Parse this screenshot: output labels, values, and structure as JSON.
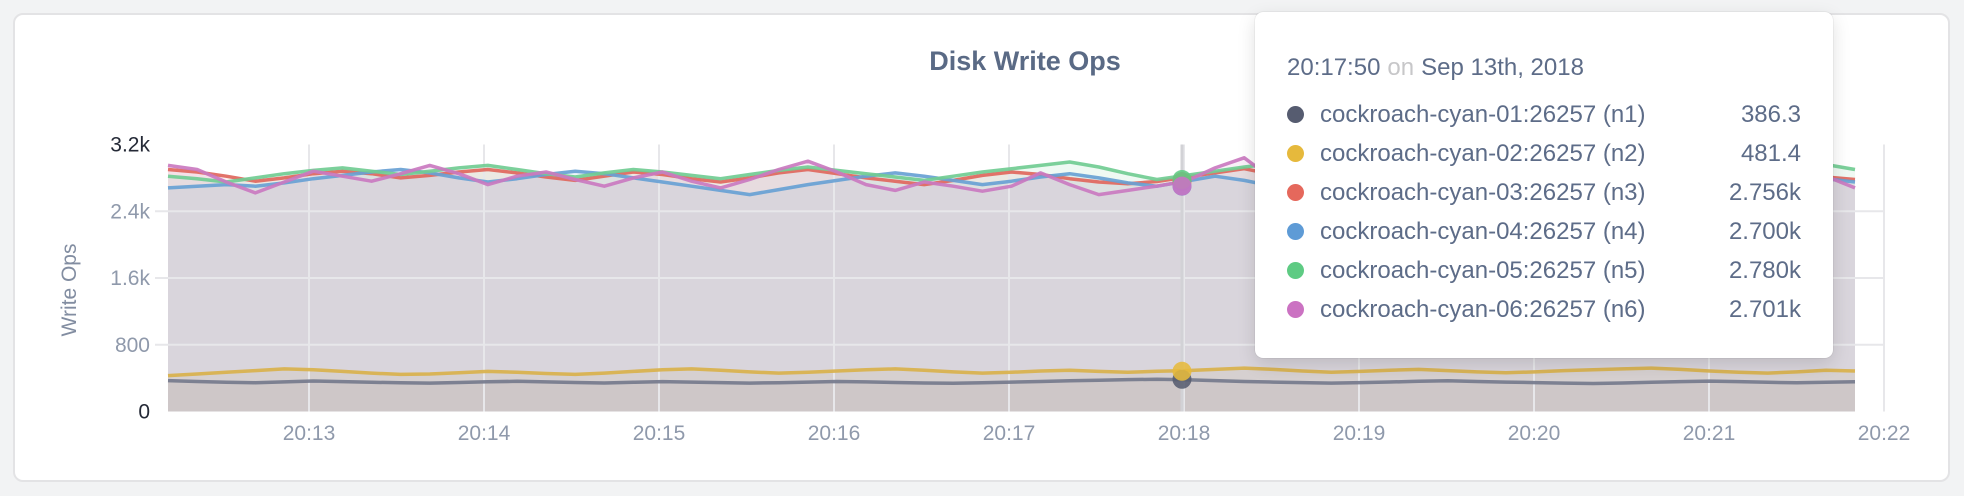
{
  "card": {
    "background": "#ffffff",
    "page_background": "#f2f3f4"
  },
  "chart_data": {
    "type": "line",
    "title": "Disk Write Ops",
    "xlabel": "",
    "ylabel": "Write Ops",
    "ylim": [
      0,
      3200
    ],
    "grid": true,
    "x_ticks": [
      "20:13",
      "20:14",
      "20:15",
      "20:16",
      "20:17",
      "20:18",
      "20:19",
      "20:20",
      "20:21",
      "20:22"
    ],
    "y_ticks": [
      {
        "value": 3200,
        "label": "3.2k",
        "emphasis": true
      },
      {
        "value": 2400,
        "label": "2.4k",
        "emphasis": false
      },
      {
        "value": 1600,
        "label": "1.6k",
        "emphasis": false
      },
      {
        "value": 800,
        "label": "800",
        "emphasis": false
      },
      {
        "value": 0,
        "label": "0",
        "emphasis": true
      }
    ],
    "series": [
      {
        "id": "n1",
        "name": "cockroach-cyan-01:26257 (n1)",
        "color": "#757a8c",
        "dot_color": "#565c70",
        "values": [
          370,
          360,
          350,
          345,
          355,
          365,
          358,
          350,
          345,
          340,
          348,
          356,
          362,
          355,
          348,
          342,
          350,
          358,
          352,
          346,
          340,
          345,
          352,
          360,
          355,
          348,
          342,
          338,
          344,
          352,
          360,
          368,
          375,
          382,
          386.3,
          380,
          370,
          360,
          352,
          346,
          340,
          346,
          354,
          362,
          368,
          360,
          352,
          346,
          340,
          336,
          342,
          350,
          358,
          364,
          358,
          350,
          344,
          350,
          356
        ]
      },
      {
        "id": "n2",
        "name": "cockroach-cyan-02:26257 (n2)",
        "color": "#d9b14b",
        "dot_color": "#e6b93c",
        "values": [
          430,
          450,
          470,
          490,
          510,
          500,
          480,
          460,
          445,
          450,
          465,
          480,
          470,
          455,
          445,
          460,
          480,
          500,
          510,
          495,
          475,
          460,
          470,
          485,
          500,
          510,
          495,
          475,
          460,
          470,
          485,
          495,
          480,
          470,
          481.4,
          490,
          505,
          520,
          505,
          485,
          470,
          480,
          495,
          505,
          490,
          475,
          465,
          475,
          490,
          500,
          510,
          520,
          505,
          485,
          470,
          460,
          475,
          495,
          485
        ]
      },
      {
        "id": "n3",
        "name": "cockroach-cyan-03:26257 (n3)",
        "color": "#df675d",
        "dot_color": "#e5685c",
        "values": [
          2900,
          2870,
          2820,
          2760,
          2800,
          2850,
          2880,
          2850,
          2800,
          2830,
          2870,
          2900,
          2860,
          2810,
          2770,
          2820,
          2870,
          2840,
          2790,
          2750,
          2800,
          2860,
          2900,
          2850,
          2800,
          2760,
          2720,
          2770,
          2830,
          2870,
          2840,
          2790,
          2750,
          2730,
          2756,
          2810,
          2860,
          2910,
          2840,
          2770,
          2810,
          2850,
          2880,
          2830,
          2780,
          2820,
          2860,
          2830,
          2790,
          2750,
          2790,
          2840,
          2870,
          2820,
          2770,
          2810,
          2850,
          2810,
          2780
        ]
      },
      {
        "id": "n4",
        "name": "cockroach-cyan-04:26257 (n4)",
        "color": "#68a1d4",
        "dot_color": "#5e9bd6",
        "values": [
          2680,
          2700,
          2720,
          2700,
          2740,
          2790,
          2830,
          2870,
          2900,
          2860,
          2800,
          2750,
          2790,
          2840,
          2880,
          2850,
          2800,
          2750,
          2700,
          2650,
          2600,
          2660,
          2720,
          2770,
          2820,
          2860,
          2820,
          2770,
          2720,
          2760,
          2810,
          2850,
          2800,
          2740,
          2700,
          2760,
          2820,
          2770,
          2700,
          2640,
          2690,
          2750,
          2810,
          2860,
          2900,
          2850,
          2790,
          2740,
          2780,
          2830,
          2870,
          2910,
          2860,
          2800,
          2750,
          2700,
          2740,
          2790,
          2750
        ]
      },
      {
        "id": "n5",
        "name": "cockroach-cyan-05:26257 (n5)",
        "color": "#71cc92",
        "dot_color": "#5ecb83",
        "values": [
          2820,
          2790,
          2750,
          2800,
          2850,
          2890,
          2920,
          2880,
          2840,
          2880,
          2920,
          2950,
          2900,
          2850,
          2810,
          2860,
          2900,
          2870,
          2830,
          2790,
          2840,
          2890,
          2930,
          2890,
          2850,
          2810,
          2770,
          2820,
          2870,
          2910,
          2950,
          2990,
          2930,
          2850,
          2780,
          2830,
          2880,
          2930,
          2970,
          2910,
          2850,
          2890,
          2930,
          2890,
          2840,
          2880,
          2920,
          2890,
          2850,
          2810,
          2850,
          2900,
          2930,
          2890,
          2840,
          2880,
          2920,
          2960,
          2900
        ]
      },
      {
        "id": "n6",
        "name": "cockroach-cyan-06:26257 (n6)",
        "color": "#ca79c0",
        "dot_color": "#cb72c2",
        "values": [
          2950,
          2900,
          2750,
          2620,
          2750,
          2880,
          2820,
          2760,
          2850,
          2950,
          2850,
          2720,
          2820,
          2870,
          2780,
          2700,
          2800,
          2870,
          2760,
          2680,
          2780,
          2900,
          3000,
          2870,
          2720,
          2650,
          2750,
          2700,
          2640,
          2700,
          2860,
          2720,
          2600,
          2650,
          2701,
          2760,
          2920,
          3040,
          2780,
          2650,
          2700,
          2760,
          2820,
          2700,
          2600,
          2700,
          2810,
          2760,
          2700,
          2640,
          2700,
          2770,
          2830,
          2700,
          2640,
          2700,
          2930,
          2820,
          2680
        ]
      }
    ],
    "hover": {
      "index": 34,
      "time": "20:17:50",
      "connector": "on",
      "date": "Sep 13th, 2018",
      "rows": [
        {
          "series": 0,
          "value": "386.3"
        },
        {
          "series": 1,
          "value": "481.4"
        },
        {
          "series": 2,
          "value": "2.756k"
        },
        {
          "series": 3,
          "value": "2.700k"
        },
        {
          "series": 4,
          "value": "2.780k"
        },
        {
          "series": 5,
          "value": "2.701k"
        }
      ]
    },
    "legend_position": "tooltip-only",
    "colors": {
      "grid": "#e7e7ea",
      "hover_line": "#d2d2d6",
      "axis_tick_text": "#8f99ab",
      "axis_tick_text_emphasis": "#242936",
      "title_text": "#5a6a85"
    }
  }
}
